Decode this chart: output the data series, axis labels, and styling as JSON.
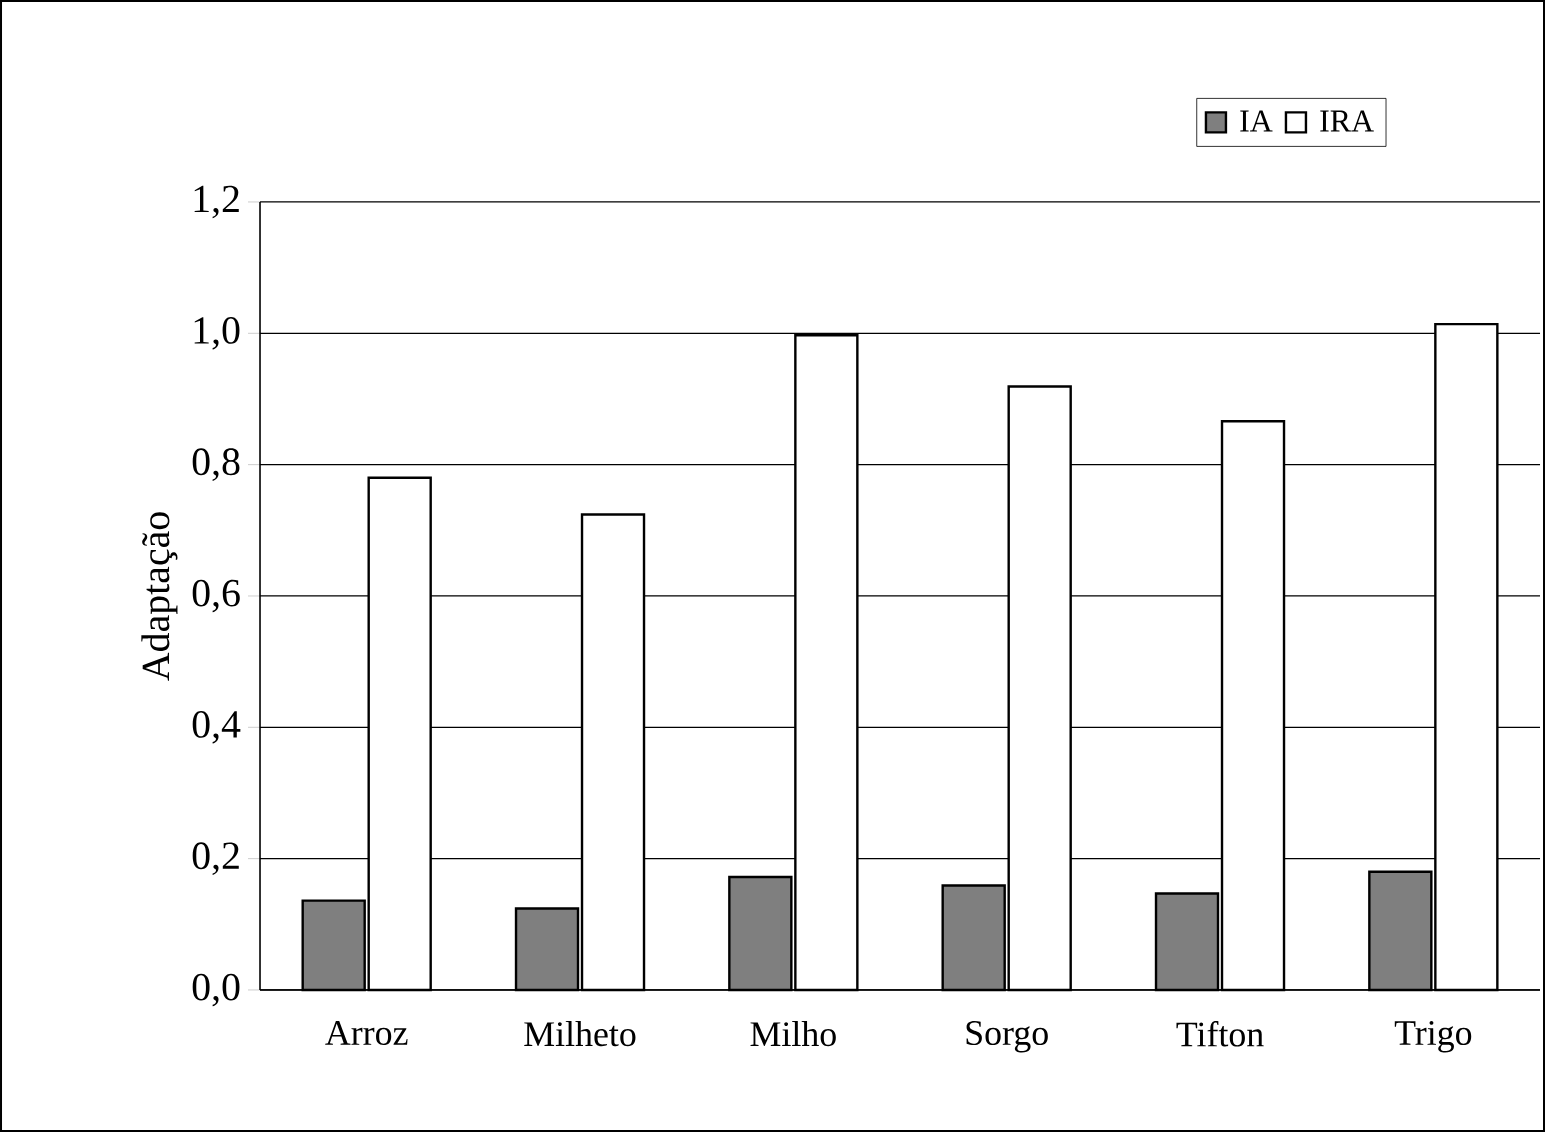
{
  "chart_data": {
    "type": "bar",
    "ylabel": "Adaptação",
    "categories": [
      "Arroz",
      "Milheto",
      "Milho",
      "Sorgo",
      "Tifton",
      "Trigo"
    ],
    "series": [
      {
        "name": "IA",
        "color": "#7f7f7f",
        "values": [
          0.136,
          0.124,
          0.172,
          0.159,
          0.147,
          0.18
        ]
      },
      {
        "name": "IRA",
        "color": "#ffffff",
        "values": [
          0.78,
          0.724,
          0.997,
          0.919,
          0.866,
          1.014
        ]
      }
    ],
    "ylim": [
      0,
      1.2
    ],
    "yticks": [
      {
        "value": 0,
        "label": "0,0"
      },
      {
        "value": 0.2,
        "label": "0,2"
      },
      {
        "value": 0.4,
        "label": "0,4"
      },
      {
        "value": 0.6,
        "label": "0,6"
      },
      {
        "value": 0.8,
        "label": "0,8"
      },
      {
        "value": 1.0,
        "label": "1,0"
      },
      {
        "value": 1.2,
        "label": "1,2"
      }
    ],
    "grid": "y",
    "legend": "top right"
  }
}
